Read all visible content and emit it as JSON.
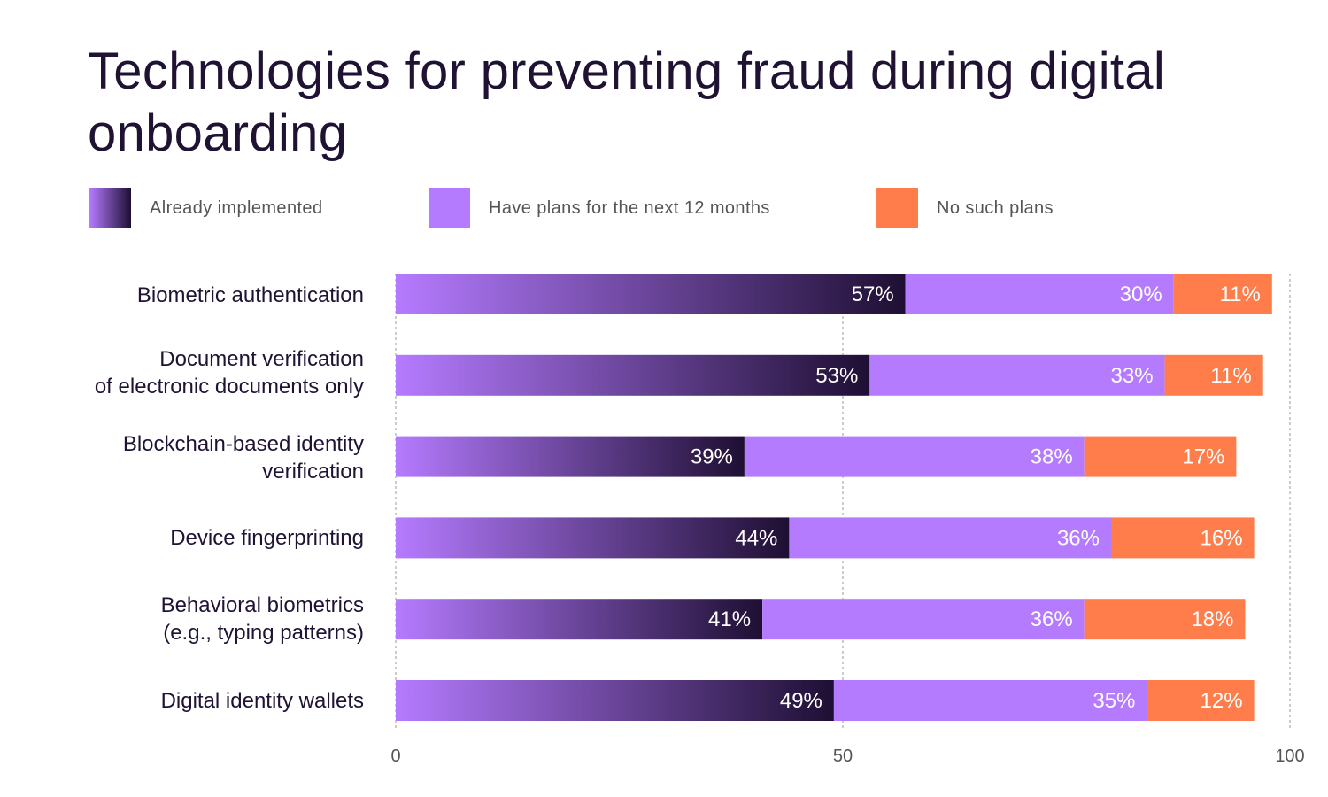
{
  "chart_data": {
    "type": "bar",
    "orientation": "horizontal",
    "stacked": true,
    "title": "Technologies for preventing fraud during digital onboarding",
    "categories": [
      "Biometric authentication",
      "Document verification\nof electronic documents only",
      "Blockchain-based identity\nverification",
      "Device fingerprinting",
      "Behavioral biometrics\n(e.g., typing patterns)",
      "Digital identity wallets"
    ],
    "series": [
      {
        "name": "Already implemented",
        "values": [
          57,
          53,
          39,
          44,
          41,
          49
        ],
        "labels": [
          "57%",
          "53%",
          "39%",
          "44%",
          "41%",
          "49%"
        ]
      },
      {
        "name": "Have plans for the next 12 months",
        "values": [
          30,
          33,
          38,
          36,
          36,
          35
        ],
        "labels": [
          "30%",
          "33%",
          "38%",
          "36%",
          "36%",
          "35%"
        ]
      },
      {
        "name": "No such plans",
        "values": [
          11,
          11,
          17,
          16,
          18,
          12
        ],
        "labels": [
          "11%",
          "11%",
          "17%",
          "16%",
          "18%",
          "12%"
        ]
      }
    ],
    "xlim": [
      0,
      100
    ],
    "xticks": [
      0,
      50,
      100
    ],
    "xtick_labels": [
      "0",
      "50",
      "100"
    ],
    "grid": "vertical dashed at ticks",
    "legend_position": "top",
    "colors": {
      "implemented_start": "#b57bff",
      "implemented_end": "#1e0f33",
      "plans": "#b57bff",
      "no_plans": "#ff7d4a",
      "text": "#1f1233",
      "grid": "#9a9a9a"
    }
  }
}
